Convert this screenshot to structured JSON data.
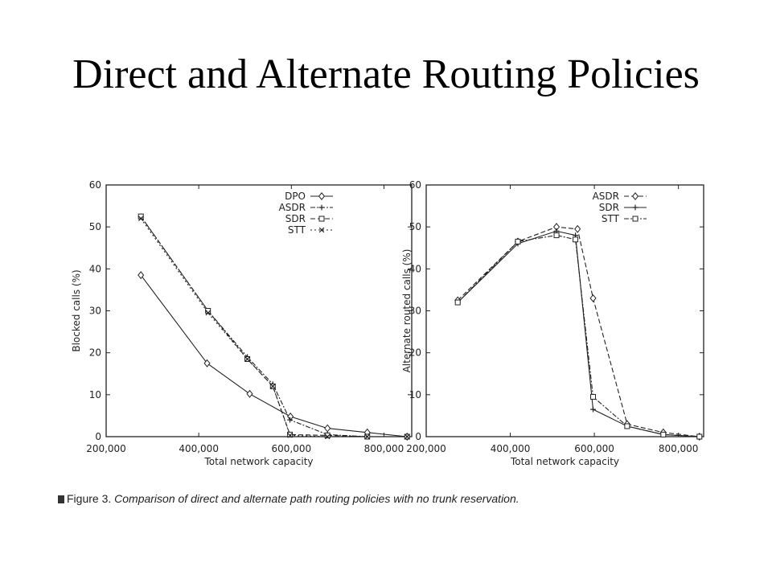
{
  "slide": {
    "title": "Direct and Alternate Routing Policies"
  },
  "figure": {
    "caption_label": "Figure 3.",
    "caption_text": "Comparison of direct and alternate path routing policies with no trunk reservation."
  },
  "chart_data": [
    {
      "type": "line",
      "title": "",
      "xlabel": "Total network capacity",
      "ylabel": "Blocked calls (%)",
      "xlim": [
        200000,
        860000
      ],
      "ylim": [
        0,
        60
      ],
      "xticks": [
        200000,
        400000,
        600000,
        800000
      ],
      "xtick_labels": [
        "200,000",
        "400,000",
        "600,000",
        "800,000"
      ],
      "yticks": [
        0,
        10,
        20,
        30,
        40,
        50,
        60
      ],
      "ytick_labels": [
        "0",
        "10",
        "20",
        "30",
        "40",
        "50",
        "60"
      ],
      "legend_position": "top-right",
      "series": [
        {
          "name": "DPO",
          "marker": "diamond",
          "dash": "solid",
          "x": [
            275000,
            418000,
            510000,
            598000,
            678000,
            764000,
            850000
          ],
          "y": [
            38.5,
            17.5,
            10.2,
            4.8,
            2.0,
            1.0,
            0.0
          ]
        },
        {
          "name": "ASDR",
          "marker": "plus",
          "dash": "dashdot",
          "x": [
            275000,
            420000,
            505000,
            560000,
            597000,
            678000,
            764000,
            850000
          ],
          "y": [
            52.5,
            30.0,
            19.0,
            12.5,
            4.0,
            0.5,
            0.0,
            0.0
          ]
        },
        {
          "name": "SDR",
          "marker": "square",
          "dash": "dash",
          "x": [
            275000,
            420000,
            505000,
            560000,
            597000,
            678000,
            764000,
            850000
          ],
          "y": [
            52.5,
            30.0,
            18.5,
            12.0,
            0.5,
            0.3,
            0.0,
            0.0
          ]
        },
        {
          "name": "STT",
          "marker": "x",
          "dash": "dot",
          "x": [
            275000,
            420000,
            505000,
            560000,
            597000,
            678000,
            764000,
            850000
          ],
          "y": [
            52.0,
            29.5,
            18.5,
            12.0,
            0.3,
            0.0,
            0.0,
            0.0
          ]
        }
      ]
    },
    {
      "type": "line",
      "title": "",
      "xlabel": "Total network capacity",
      "ylabel": "Alternate routed calls (%)",
      "xlim": [
        200000,
        860000
      ],
      "ylim": [
        0,
        60
      ],
      "xticks": [
        200000,
        400000,
        600000,
        800000
      ],
      "xtick_labels": [
        "200,000",
        "400,000",
        "600,000",
        "800,000"
      ],
      "yticks": [
        0,
        10,
        20,
        30,
        40,
        50,
        60
      ],
      "ytick_labels": [
        "0",
        "10",
        "20",
        "30",
        "40",
        "50",
        "60"
      ],
      "legend_position": "top-right",
      "series": [
        {
          "name": "ASDR",
          "marker": "diamond",
          "dash": "dash",
          "x": [
            275000,
            418000,
            510000,
            560000,
            597000,
            678000,
            764000,
            850000
          ],
          "y": [
            32.5,
            46.5,
            50.0,
            49.5,
            33.0,
            3.0,
            1.0,
            0.0
          ]
        },
        {
          "name": "SDR",
          "marker": "plus",
          "dash": "solid",
          "x": [
            275000,
            418000,
            510000,
            555000,
            597000,
            678000,
            764000,
            850000
          ],
          "y": [
            32.0,
            46.0,
            49.0,
            48.0,
            6.5,
            2.5,
            0.5,
            0.0
          ]
        },
        {
          "name": "STT",
          "marker": "square",
          "dash": "dashdot",
          "x": [
            275000,
            418000,
            510000,
            555000,
            597000,
            678000,
            764000,
            850000
          ],
          "y": [
            32.0,
            46.5,
            48.0,
            47.0,
            9.5,
            2.5,
            0.5,
            0.0
          ]
        }
      ]
    }
  ]
}
